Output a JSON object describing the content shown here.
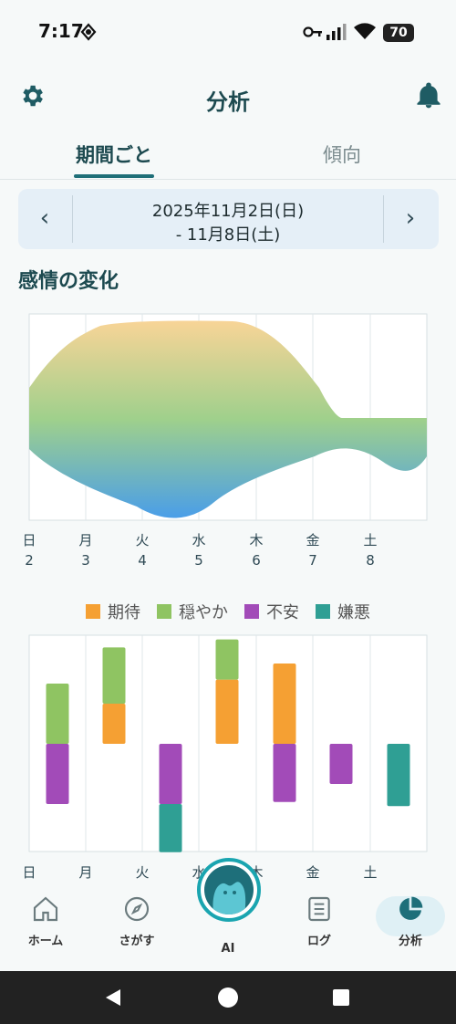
{
  "status_bar": {
    "time": "7:17",
    "battery": "70"
  },
  "header": {
    "title": "分析",
    "settings_icon": "gear-icon",
    "notification_icon": "bell-icon"
  },
  "tabs": [
    {
      "label": "期間ごと",
      "active": true
    },
    {
      "label": "傾向",
      "active": false
    }
  ],
  "date_range": {
    "line1": "2025年11月2日(日)",
    "line2": "- 11月8日(土)",
    "prev_icon": "chevron-left-icon",
    "next_icon": "chevron-right-icon"
  },
  "section_title": "感情の変化",
  "emotion_chart": {
    "days": [
      {
        "weekday": "日",
        "date": "2"
      },
      {
        "weekday": "月",
        "date": "3"
      },
      {
        "weekday": "火",
        "date": "4"
      },
      {
        "weekday": "水",
        "date": "5"
      },
      {
        "weekday": "木",
        "date": "6"
      },
      {
        "weekday": "金",
        "date": "7"
      },
      {
        "weekday": "土",
        "date": "8"
      }
    ]
  },
  "legend": [
    {
      "label": "期待",
      "color": "#f5a033"
    },
    {
      "label": "穏やか",
      "color": "#8fc462"
    },
    {
      "label": "不安",
      "color": "#a24bb8"
    },
    {
      "label": "嫌悪",
      "color": "#2f9f94"
    }
  ],
  "chart_data": {
    "type": "bar",
    "stacked": "diverging",
    "categories": [
      "日",
      "月",
      "火",
      "水",
      "木",
      "金",
      "土"
    ],
    "series": [
      {
        "name": "期待",
        "color": "#f5a033",
        "values": [
          0,
          1,
          0,
          1.6,
          2,
          0,
          0
        ]
      },
      {
        "name": "穏やか",
        "color": "#8fc462",
        "values": [
          1.5,
          1.4,
          0,
          1,
          0,
          0,
          0
        ]
      },
      {
        "name": "不安",
        "color": "#a24bb8",
        "values": [
          -1.5,
          0,
          -1.5,
          0,
          -1.45,
          -1,
          0
        ]
      },
      {
        "name": "嫌悪",
        "color": "#2f9f94",
        "values": [
          0,
          0,
          -1.2,
          0,
          0,
          0,
          -1.55
        ]
      }
    ],
    "ylim": [
      -2.6,
      2.6
    ],
    "grid": true
  },
  "bottom_nav": [
    {
      "label": "ホーム",
      "icon": "home-icon"
    },
    {
      "label": "さがす",
      "icon": "compass-icon"
    },
    {
      "label": "AI",
      "icon": "ai-mascot-icon"
    },
    {
      "label": "ログ",
      "icon": "list-icon"
    },
    {
      "label": "分析",
      "icon": "pie-chart-icon",
      "active": true
    }
  ],
  "system_nav": {
    "back": "back-icon",
    "home": "home-circle-icon",
    "recents": "recents-icon"
  }
}
